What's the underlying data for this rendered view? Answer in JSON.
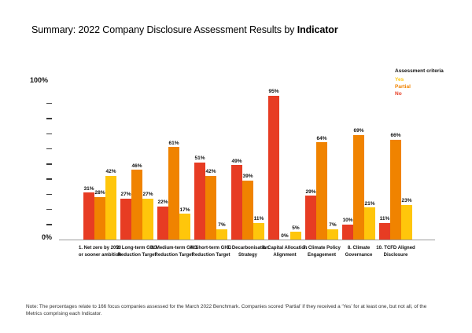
{
  "title": {
    "prefix": "Summary: 2022 Company Disclosure Assessment Results by ",
    "emphasis": "Indicator"
  },
  "legend": {
    "title": "Assessment criteria",
    "items": [
      {
        "label": "Yes",
        "color": "#FFC60B"
      },
      {
        "label": "Partial",
        "color": "#F08300"
      },
      {
        "label": "No",
        "color": "#E73C23"
      }
    ]
  },
  "chart_data": {
    "type": "bar",
    "title": "Summary: 2022 Company Disclosure Assessment Results by Indicator",
    "categories": [
      "1. Net zero by 2050 or sooner ambition",
      "2. Long-term GHG Reduction Target",
      "3. Medium-term GHG Reduction Target",
      "4. Short-term GHG Reduction Target",
      "5. Decarbonisation Strategy",
      "6. Capital Allocation Alignment",
      "7. Climate Policy Engagement",
      "8. Climate Governance",
      "10. TCFD Aligned Disclosure"
    ],
    "series": [
      {
        "name": "No",
        "color": "#E73C23",
        "values": [
          31,
          27,
          22,
          51,
          49,
          95,
          29,
          10,
          11
        ]
      },
      {
        "name": "Partial",
        "color": "#F08300",
        "values": [
          28,
          46,
          61,
          42,
          39,
          0,
          64,
          69,
          66
        ]
      },
      {
        "name": "Yes",
        "color": "#FFC60B",
        "values": [
          42,
          27,
          17,
          7,
          11,
          5,
          7,
          21,
          23
        ]
      }
    ],
    "value_suffix": "%",
    "ylim": [
      0,
      100
    ],
    "y_axis_labels": {
      "top": "100%",
      "bottom": "0%"
    },
    "grid": false,
    "legend_position": "top-right"
  },
  "note": "Note: The percentages relate to 166 focus companies assessed for the March 2022 Benchmark. Companies scored ‘Partial’ if they received a ‘Yes’ for at least one, but not all, of the Metrics comprising each Indicator."
}
